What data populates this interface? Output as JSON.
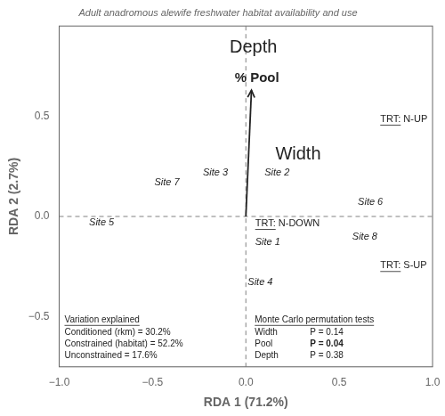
{
  "chart_data": {
    "type": "scatter",
    "title": "Adult anadromous alewife freshwater habitat availability and use",
    "x_label": "RDA 1 (71.2%)",
    "y_label": "RDA 2 (2.7%)",
    "xlim": [
      -1.0,
      1.0
    ],
    "ylim": [
      -0.75,
      0.95
    ],
    "xticks": [
      {
        "value": -1.0,
        "label": "−1.0"
      },
      {
        "value": -0.5,
        "label": "−0.5"
      },
      {
        "value": 0.0,
        "label": "0.0"
      },
      {
        "value": 0.5,
        "label": "0.5"
      },
      {
        "value": 1.0,
        "label": "1.0"
      }
    ],
    "yticks": [
      {
        "value": -0.5,
        "label": "−0.5"
      },
      {
        "value": 0.0,
        "label": "0.0"
      },
      {
        "value": 0.5,
        "label": "0.5"
      }
    ],
    "grid": false,
    "reference_lines": {
      "x": 0.0,
      "y": 0.0
    },
    "points": [
      {
        "label": "Site 1",
        "x": 0.05,
        "y": -0.13
      },
      {
        "label": "Site 2",
        "x": 0.1,
        "y": 0.22
      },
      {
        "label": "Site 3",
        "x": -0.23,
        "y": 0.22
      },
      {
        "label": "Site 4",
        "x": 0.01,
        "y": -0.33
      },
      {
        "label": "Site 5",
        "x": -0.84,
        "y": -0.03
      },
      {
        "label": "Site 6",
        "x": 0.6,
        "y": 0.07
      },
      {
        "label": "Site 7",
        "x": -0.49,
        "y": 0.17
      },
      {
        "label": "Site 8",
        "x": 0.57,
        "y": -0.1
      }
    ],
    "treatments": [
      {
        "label": "TRT:",
        "sublabel": "N-UP",
        "x": 0.72,
        "y": 0.46
      },
      {
        "label": "TRT:",
        "sublabel": "N-DOWN",
        "x": 0.05,
        "y": -0.06
      },
      {
        "label": "TRT:",
        "sublabel": "S-UP",
        "x": 0.72,
        "y": -0.27
      }
    ],
    "vectors": [
      {
        "label": "% Pool",
        "x_start": 0.0,
        "y_start": 0.0,
        "x_end": 0.03,
        "y_end": 0.63,
        "label_x": -0.06,
        "label_y": 0.69
      }
    ],
    "text_labels": [
      {
        "text": "Depth",
        "x": 0.04,
        "y": 0.84
      },
      {
        "text": "Width",
        "x": 0.28,
        "y": 0.31
      }
    ],
    "panels": [
      {
        "header": "Variation explained",
        "rows": [
          {
            "text": "Conditioned (rkm) = 30.2%"
          },
          {
            "text": "Constrained (habitat) = 52.2%"
          },
          {
            "text": "Unconstrained = 17.6%"
          }
        ]
      },
      {
        "header": "Monte Carlo permutation tests",
        "rows": [
          {
            "text": "Width",
            "p_label": "P = 0.14",
            "bold": false
          },
          {
            "text": "Pool",
            "p_label": "P = 0.04",
            "bold": true
          },
          {
            "text": "Depth",
            "p_label": "P = 0.38",
            "bold": false
          }
        ]
      }
    ]
  }
}
